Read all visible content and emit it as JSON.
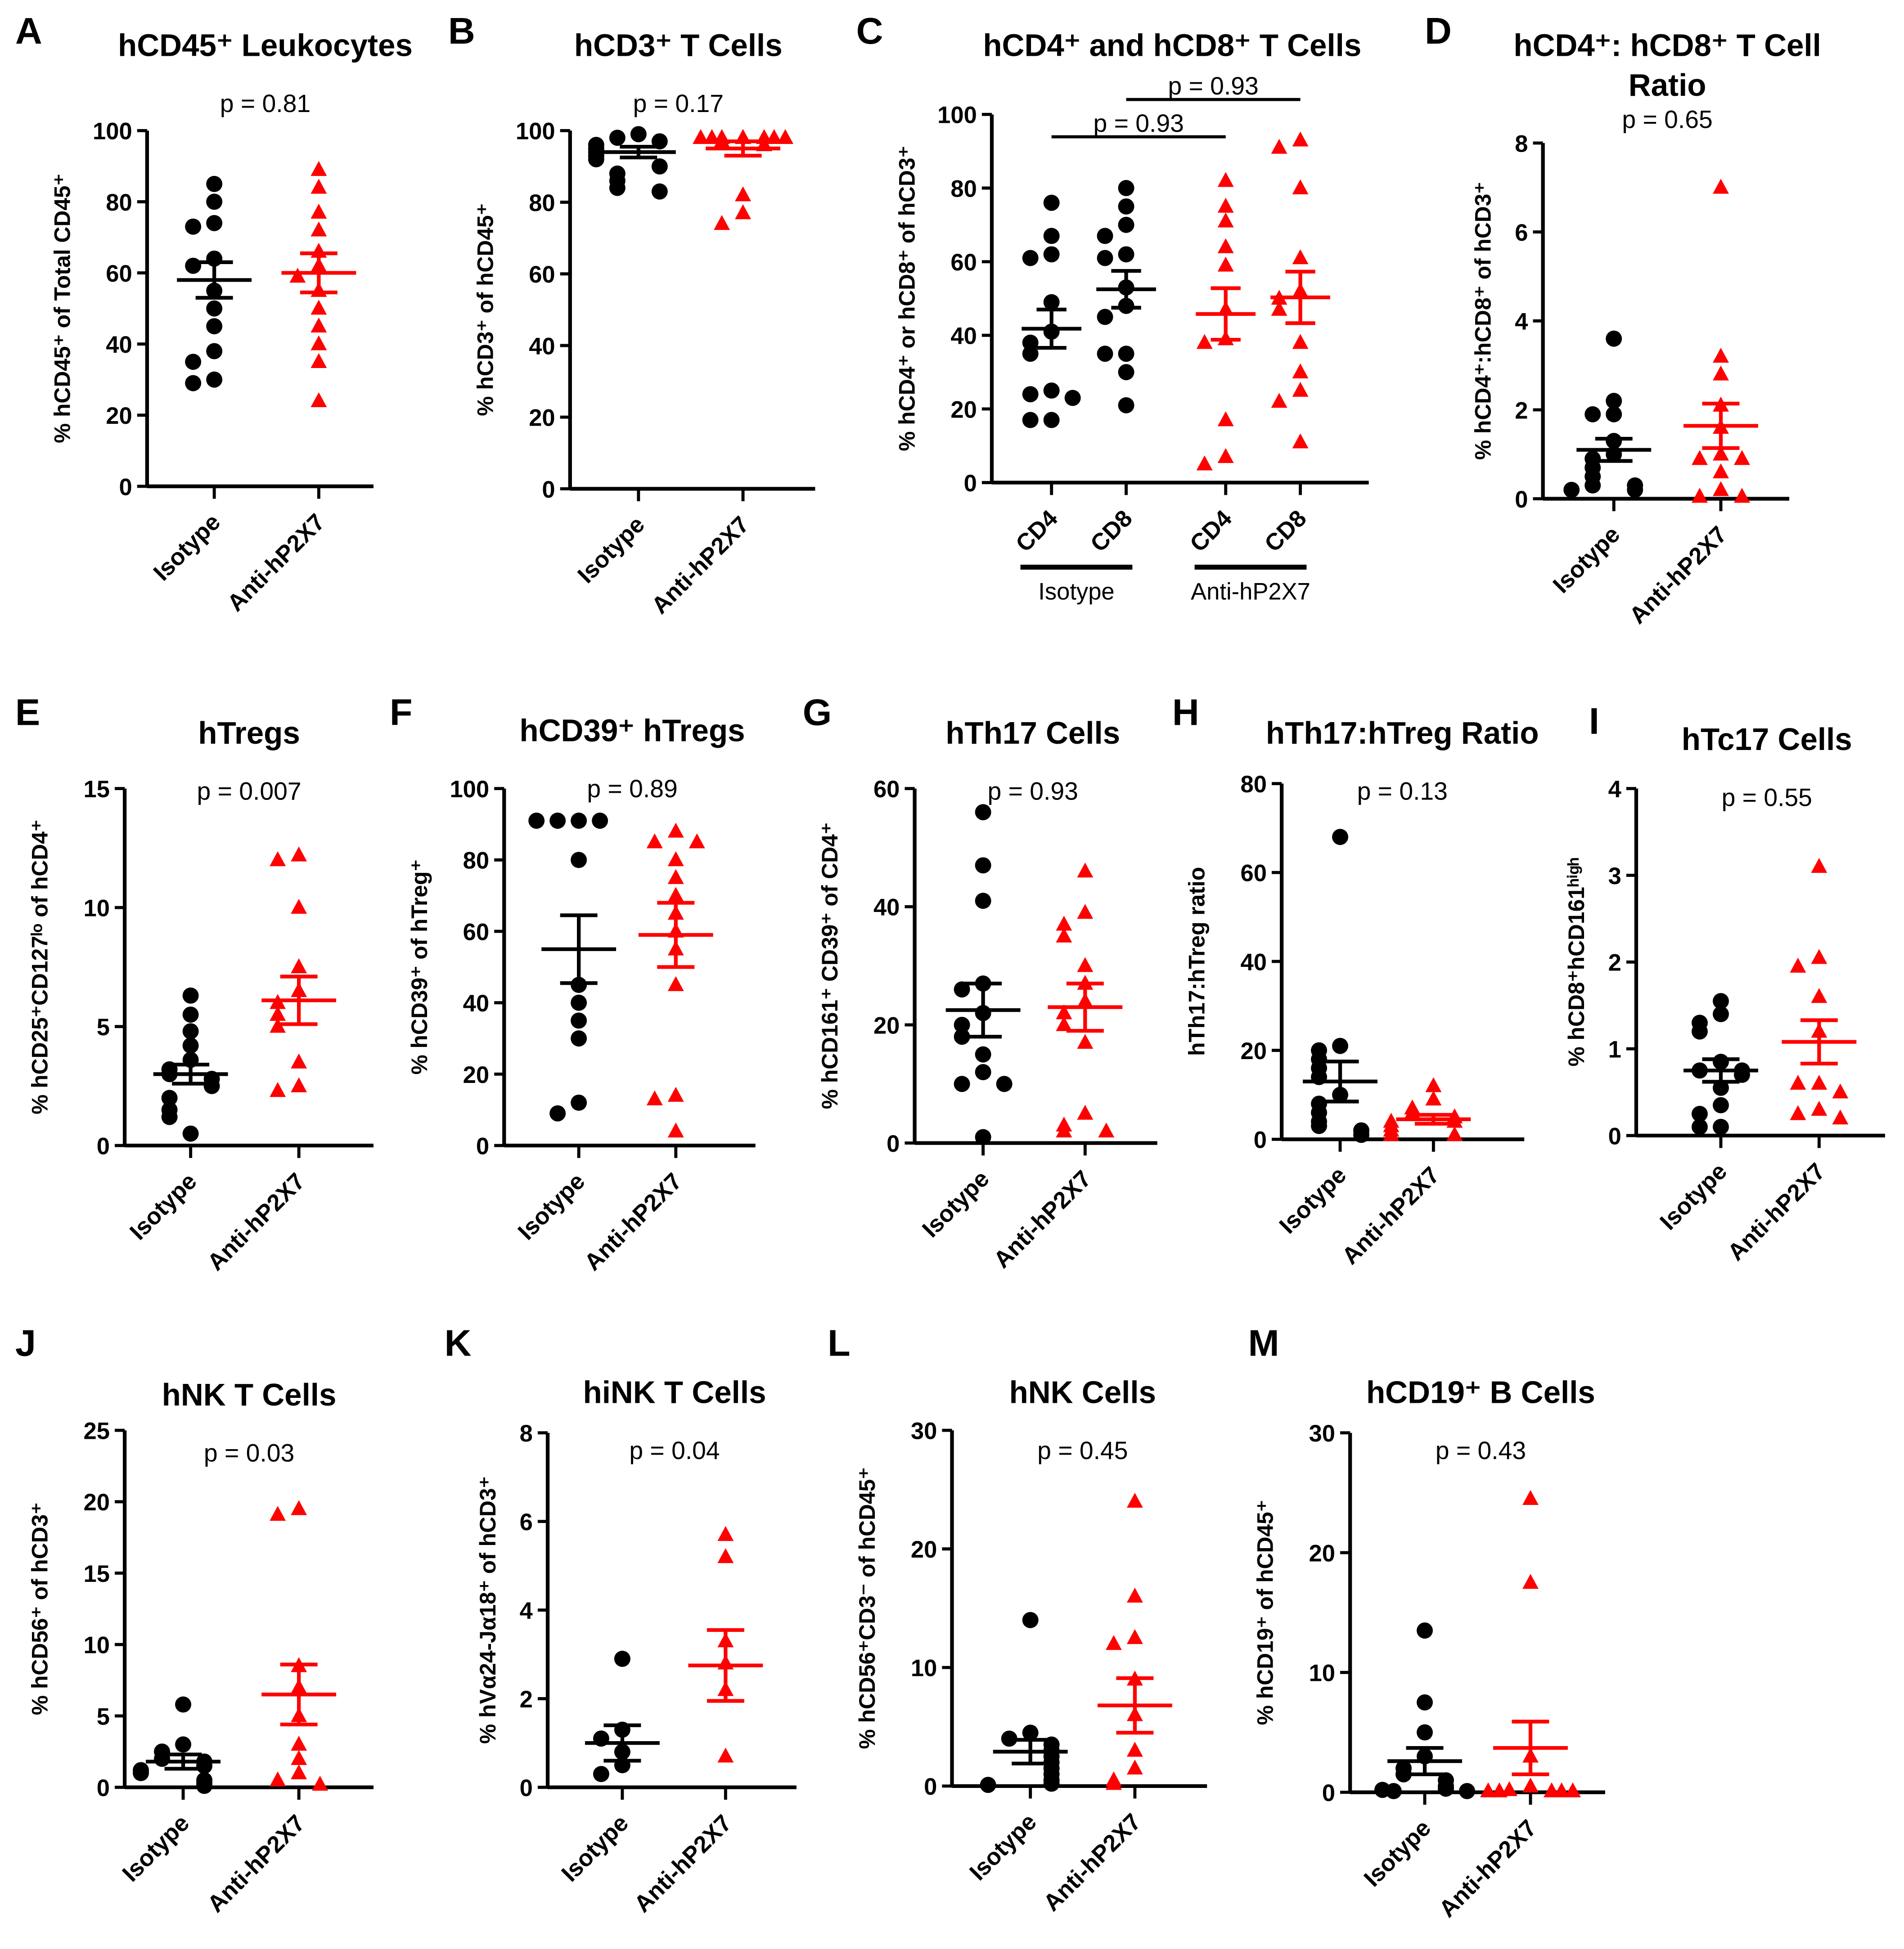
{
  "colors": {
    "isotype": "#000000",
    "anti": "#ff0000"
  },
  "groups": [
    "Isotype",
    "Anti-hP2X7"
  ],
  "chart_data": [
    {
      "letter": "A",
      "type": "scatter",
      "title": "hCD45⁺ Leukocytes",
      "p": "p = 0.81",
      "ylabel": "% hCD45⁺ of Total CD45⁺",
      "ylim": [
        0,
        100
      ],
      "yticks": [
        0,
        20,
        40,
        60,
        80,
        100
      ],
      "categories": [
        "Isotype",
        "Anti-hP2X7"
      ],
      "series": [
        {
          "name": "Isotype",
          "values": [
            85,
            80,
            74,
            73,
            64,
            62,
            55,
            50,
            45,
            38,
            35,
            30,
            29
          ],
          "mean": 58,
          "sem": 5
        },
        {
          "name": "Anti-hP2X7",
          "values": [
            89,
            84,
            77,
            72,
            66,
            62,
            59,
            55,
            50,
            45,
            40,
            35,
            24
          ],
          "mean": 60,
          "sem": 5.5
        }
      ]
    },
    {
      "letter": "B",
      "type": "scatter",
      "title": "hCD3⁺ T Cells",
      "p": "p = 0.17",
      "ylabel": "% hCD3⁺ of hCD45⁺",
      "ylim": [
        0,
        100
      ],
      "yticks": [
        0,
        20,
        40,
        60,
        80,
        100
      ],
      "categories": [
        "Isotype",
        "Anti-hP2X7"
      ],
      "series": [
        {
          "name": "Isotype",
          "values": [
            99,
            98,
            97,
            96,
            95,
            94,
            93,
            92,
            90,
            88,
            86,
            84,
            83
          ],
          "mean": 94,
          "sem": 1.5
        },
        {
          "name": "Anti-hP2X7",
          "values": [
            98,
            98,
            98,
            98,
            98,
            98,
            98,
            98,
            97,
            96,
            82,
            77,
            74
          ],
          "mean": 95,
          "sem": 2
        }
      ]
    },
    {
      "letter": "C",
      "type": "scatter",
      "title": "hCD4⁺ and hCD8⁺ T Cells",
      "ylabel": "% hCD4⁺ or hCD8⁺ of hCD3⁺",
      "ylim": [
        0,
        100
      ],
      "yticks": [
        0,
        20,
        40,
        60,
        80,
        100
      ],
      "categories": [
        "CD4",
        "CD8",
        "CD4",
        "CD8"
      ],
      "group_labels": [
        "Isotype",
        "Anti-hP2X7"
      ],
      "brackets": [
        {
          "from": 0,
          "to": 2,
          "label": "p = 0.93"
        },
        {
          "from": 1,
          "to": 3,
          "label": "p = 0.93"
        }
      ],
      "series": [
        {
          "name": "Isotype CD4",
          "values": [
            76,
            67,
            62,
            61,
            49,
            41,
            38,
            35,
            25,
            24,
            23,
            17,
            17
          ],
          "mean": 41.8,
          "sem": 5.2
        },
        {
          "name": "Isotype CD8",
          "values": [
            80,
            75,
            70,
            67,
            62,
            61,
            53,
            48,
            45,
            35,
            35,
            30,
            21
          ],
          "mean": 52.5,
          "sem": 5
        },
        {
          "name": "Anti-hP2X7 CD4",
          "values": [
            82,
            75,
            71,
            64,
            59,
            47,
            39,
            38,
            17,
            7,
            5
          ],
          "mean": 45.8,
          "sem": 7
        },
        {
          "name": "Anti-hP2X7 CD8",
          "values": [
            93,
            91,
            80,
            61,
            52,
            50,
            47,
            38,
            30,
            25,
            22,
            11
          ],
          "mean": 50.3,
          "sem": 7
        }
      ]
    },
    {
      "letter": "D",
      "type": "scatter",
      "title": "hCD4⁺: hCD8⁺ T Cell",
      "title2": "Ratio",
      "p": "p = 0.65",
      "ylabel": "% hCD4⁺:hCD8⁺ of hCD3⁺",
      "ylim": [
        0,
        8
      ],
      "yticks": [
        0,
        2,
        4,
        6,
        8
      ],
      "categories": [
        "Isotype",
        "Anti-hP2X7"
      ],
      "series": [
        {
          "name": "Isotype",
          "values": [
            3.6,
            2.2,
            1.9,
            1.9,
            1.3,
            1.0,
            0.9,
            0.7,
            0.5,
            0.3,
            0.3,
            0.2,
            0.2
          ],
          "mean": 1.1,
          "sem": 0.25
        },
        {
          "name": "Anti-hP2X7",
          "values": [
            7.0,
            3.2,
            2.8,
            2.1,
            1.6,
            1.0,
            0.9,
            0.9,
            0.6,
            0.2,
            0.05,
            0.05
          ],
          "mean": 1.64,
          "sem": 0.5
        }
      ]
    },
    {
      "letter": "E",
      "type": "scatter",
      "title": "hTregs",
      "p": "p = 0.007",
      "ylabel": "% hCD25⁺CD127ˡᵒ of hCD4⁺",
      "ylim": [
        0,
        15
      ],
      "yticks": [
        0,
        5,
        10,
        15
      ],
      "categories": [
        "Isotype",
        "Anti-hP2X7"
      ],
      "series": [
        {
          "name": "Isotype",
          "values": [
            6.3,
            5.5,
            4.8,
            4.2,
            3.6,
            3.2,
            3.0,
            2.8,
            2.5,
            2.0,
            1.5,
            1.2,
            0.5
          ],
          "mean": 3.0,
          "sem": 0.4
        },
        {
          "name": "Anti-hP2X7",
          "values": [
            12.2,
            12.0,
            10.0,
            7.5,
            6.5,
            6.0,
            5.5,
            5.0,
            3.5,
            2.5,
            2.3
          ],
          "mean": 6.1,
          "sem": 1.0
        }
      ]
    },
    {
      "letter": "F",
      "type": "scatter",
      "title": "hCD39⁺ hTregs",
      "p": "p = 0.89",
      "ylabel": "% hCD39⁺ of hTreg⁺",
      "ylim": [
        0,
        100
      ],
      "yticks": [
        0,
        20,
        40,
        60,
        80,
        100
      ],
      "categories": [
        "Isotype",
        "Anti-hP2X7"
      ],
      "series": [
        {
          "name": "Isotype",
          "values": [
            91,
            91,
            91,
            91,
            80,
            45,
            40,
            35,
            30,
            12,
            9
          ],
          "mean": 55,
          "sem": 9.5
        },
        {
          "name": "Anti-hP2X7",
          "values": [
            88,
            85,
            85,
            80,
            75,
            70,
            65,
            60,
            55,
            45,
            14,
            13,
            4
          ],
          "mean": 59,
          "sem": 9
        }
      ]
    },
    {
      "letter": "G",
      "type": "scatter",
      "title": "hTh17 Cells",
      "p": "p = 0.93",
      "ylabel": "% hCD161⁺ CD39⁺ of CD4⁺",
      "ylim": [
        0,
        60
      ],
      "yticks": [
        0,
        20,
        40,
        60
      ],
      "categories": [
        "Isotype",
        "Anti-hP2X7"
      ],
      "series": [
        {
          "name": "Isotype",
          "values": [
            56,
            47,
            41,
            27,
            26,
            22,
            20,
            18,
            15,
            12,
            10,
            10,
            1
          ],
          "mean": 22.5,
          "sem": 4.5
        },
        {
          "name": "Anti-hP2X7",
          "values": [
            46,
            39,
            37,
            35,
            30,
            27,
            24,
            22,
            20,
            17,
            5,
            3,
            2,
            2
          ],
          "mean": 23,
          "sem": 4
        }
      ]
    },
    {
      "letter": "H",
      "type": "scatter",
      "title": "hTh17:hTreg Ratio",
      "p": "p = 0.13",
      "ylabel": "hTh17:hTreg ratio",
      "ylim": [
        0,
        80
      ],
      "yticks": [
        0,
        20,
        40,
        60,
        80
      ],
      "categories": [
        "Isotype",
        "Anti-hP2X7"
      ],
      "series": [
        {
          "name": "Isotype",
          "values": [
            68,
            21,
            20,
            18,
            16,
            14,
            10,
            8,
            6,
            4,
            3,
            2,
            1
          ],
          "mean": 13,
          "sem": 4.5
        },
        {
          "name": "Anti-hP2X7",
          "values": [
            12,
            9,
            7,
            6,
            5,
            4,
            4,
            3,
            2,
            1,
            1
          ],
          "mean": 4.5,
          "sem": 1
        }
      ]
    },
    {
      "letter": "I",
      "type": "scatter",
      "title": "hTc17 Cells",
      "p": "p = 0.55",
      "ylabel": "% hCD8⁺hCD161ʰⁱᵍʰ",
      "ylim": [
        0,
        4
      ],
      "yticks": [
        0,
        1,
        2,
        3,
        4
      ],
      "categories": [
        "Isotype",
        "Anti-hP2X7"
      ],
      "series": [
        {
          "name": "Isotype",
          "values": [
            1.55,
            1.4,
            1.3,
            1.2,
            0.85,
            0.75,
            0.75,
            0.7,
            0.55,
            0.35,
            0.25,
            0.1,
            0.1
          ],
          "mean": 0.75,
          "sem": 0.13
        },
        {
          "name": "Anti-hP2X7",
          "values": [
            3.1,
            2.05,
            1.95,
            1.6,
            1.2,
            0.6,
            0.6,
            0.5,
            0.3,
            0.25,
            0.2
          ],
          "mean": 1.08,
          "sem": 0.25
        }
      ]
    },
    {
      "letter": "J",
      "type": "scatter",
      "title": "hNK T Cells",
      "p": "p = 0.03",
      "ylabel": "% hCD56⁺ of hCD3⁺",
      "ylim": [
        0,
        25
      ],
      "yticks": [
        0,
        5,
        10,
        15,
        20,
        25
      ],
      "categories": [
        "Isotype",
        "Anti-hP2X7"
      ],
      "series": [
        {
          "name": "Isotype",
          "values": [
            5.8,
            3.0,
            2.5,
            2.0,
            1.8,
            1.5,
            1.2,
            1.0,
            0.5,
            0.3,
            0.1
          ],
          "mean": 1.8,
          "sem": 0.5
        },
        {
          "name": "Anti-hP2X7",
          "values": [
            19.5,
            19.1,
            8.5,
            7.0,
            5.0,
            3.0,
            2.0,
            1.0,
            0.5,
            0.2
          ],
          "mean": 6.5,
          "sem": 2.1
        }
      ]
    },
    {
      "letter": "K",
      "type": "scatter",
      "title": "hiNK T Cells",
      "p": "p = 0.04",
      "ylabel": "% hVα24-Jα18⁺ of hCD3⁺",
      "ylim": [
        0,
        8
      ],
      "yticks": [
        0,
        2,
        4,
        6,
        8
      ],
      "categories": [
        "Isotype",
        "Anti-hP2X7"
      ],
      "series": [
        {
          "name": "Isotype",
          "values": [
            2.9,
            1.3,
            1.1,
            0.8,
            0.5,
            0.3
          ],
          "mean": 1.0,
          "sem": 0.4
        },
        {
          "name": "Anti-hP2X7",
          "values": [
            5.7,
            5.2,
            3.3,
            2.8,
            2.2,
            0.7
          ],
          "mean": 2.75,
          "sem": 0.8
        }
      ]
    },
    {
      "letter": "L",
      "type": "scatter",
      "title": "hNK Cells",
      "p": "p = 0.45",
      "ylabel": "% hCD56⁺CD3⁻ of hCD45⁺",
      "ylim": [
        0,
        30
      ],
      "yticks": [
        0,
        10,
        20,
        30
      ],
      "categories": [
        "Isotype",
        "Anti-hP2X7"
      ],
      "series": [
        {
          "name": "Isotype",
          "values": [
            14,
            4.5,
            4,
            3.5,
            3,
            2.5,
            2,
            1.5,
            1,
            0.5,
            0.2,
            0.1
          ],
          "mean": 2.9,
          "sem": 1.0
        },
        {
          "name": "Anti-hP2X7",
          "values": [
            24,
            16,
            12.5,
            12,
            9,
            6,
            3,
            1.5,
            0.5,
            0.2
          ],
          "mean": 6.8,
          "sem": 2.3
        }
      ]
    },
    {
      "letter": "M",
      "type": "scatter",
      "title": "hCD19⁺ B Cells",
      "p": "p = 0.43",
      "ylabel": "% hCD19⁺ of hCD45⁺",
      "ylim": [
        0,
        30
      ],
      "yticks": [
        0,
        10,
        20,
        30
      ],
      "categories": [
        "Isotype",
        "Anti-hP2X7"
      ],
      "series": [
        {
          "name": "Isotype",
          "values": [
            13.5,
            7.5,
            5,
            3,
            2,
            1.5,
            1,
            0.5,
            0.3,
            0.2,
            0.1,
            0.1
          ],
          "mean": 2.6,
          "sem": 1.1
        },
        {
          "name": "Anti-hP2X7",
          "values": [
            24.5,
            17.5,
            3,
            0.5,
            0.2,
            0.1,
            0.1,
            0.1,
            0.1,
            0.1
          ],
          "mean": 3.7,
          "sem": 2.2
        }
      ]
    }
  ]
}
